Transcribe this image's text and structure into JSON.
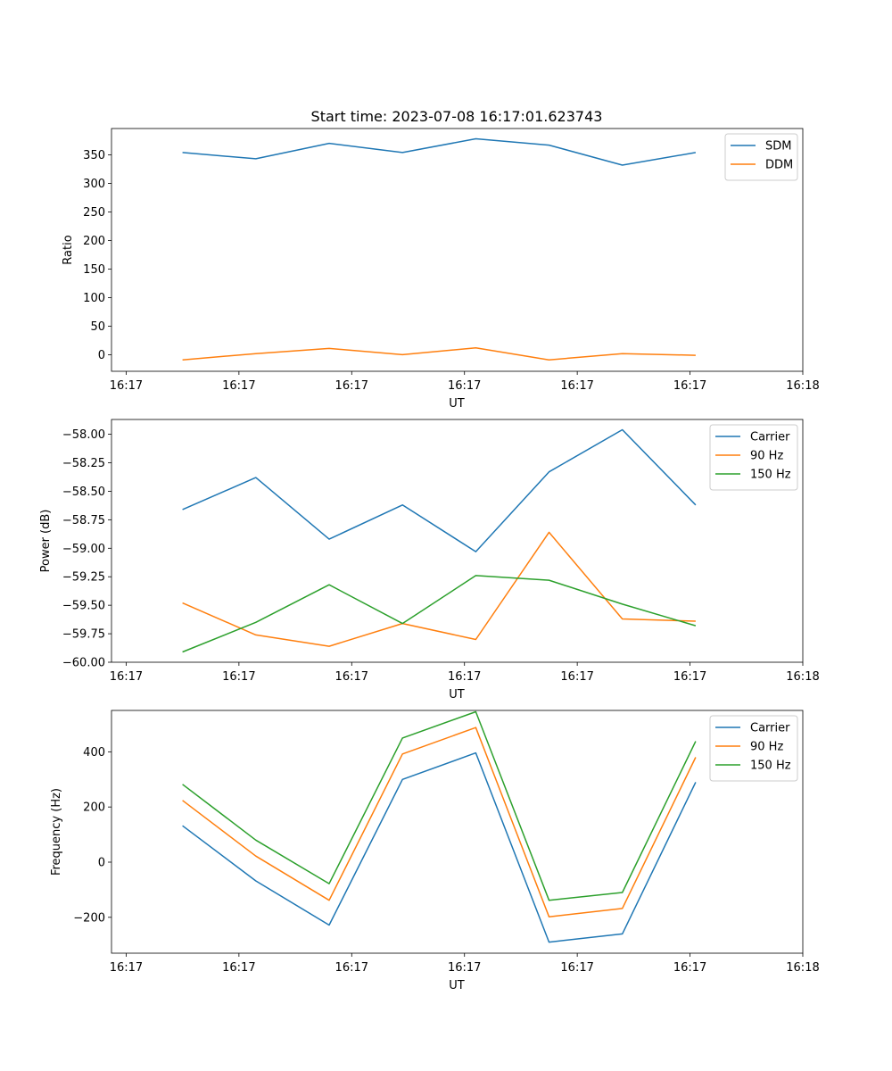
{
  "figure_title": "Start time: 2023-07-08 16:17:01.623743",
  "chart_data": [
    {
      "type": "line",
      "title": "Start time: 2023-07-08 16:17:01.623743",
      "xlabel": "UT",
      "ylabel": "Ratio",
      "x_tick_labels": [
        "16:17",
        "16:17",
        "16:17",
        "16:17",
        "16:17",
        "16:17",
        "16:18"
      ],
      "x_tick_positions": [
        0,
        1,
        2,
        3,
        4,
        5,
        6
      ],
      "xlim": [
        -0.13,
        6.0
      ],
      "x": [
        0.5,
        1.15,
        1.8,
        2.45,
        3.1,
        3.75,
        4.4,
        5.05
      ],
      "ylim": [
        -29,
        396
      ],
      "yticks": [
        0,
        50,
        100,
        150,
        200,
        250,
        300,
        350
      ],
      "legend_position": "top-right",
      "series": [
        {
          "name": "SDM",
          "color": "#1f77b4",
          "values": [
            354,
            343,
            370,
            354,
            378,
            367,
            332,
            354
          ]
        },
        {
          "name": "DDM",
          "color": "#ff7f0e",
          "values": [
            -9,
            2,
            11,
            0,
            12,
            -9,
            2,
            -1
          ]
        }
      ]
    },
    {
      "type": "line",
      "xlabel": "UT",
      "ylabel": "Power (dB)",
      "x_tick_labels": [
        "16:17",
        "16:17",
        "16:17",
        "16:17",
        "16:17",
        "16:17",
        "16:18"
      ],
      "x_tick_positions": [
        0,
        1,
        2,
        3,
        4,
        5,
        6
      ],
      "xlim": [
        -0.13,
        6.0
      ],
      "x": [
        0.5,
        1.15,
        1.8,
        2.45,
        3.1,
        3.75,
        4.4,
        5.05
      ],
      "ylim": [
        -60.0,
        -57.87
      ],
      "yticks": [
        -60.0,
        -59.75,
        -59.5,
        -59.25,
        -59.0,
        -58.75,
        -58.5,
        -58.25,
        -58.0
      ],
      "ytick_labels": [
        "−60.00",
        "−59.75",
        "−59.50",
        "−59.25",
        "−59.00",
        "−58.75",
        "−58.50",
        "−58.25",
        "−58.00"
      ],
      "legend_position": "top-right",
      "series": [
        {
          "name": "Carrier",
          "color": "#1f77b4",
          "values": [
            -58.66,
            -58.38,
            -58.92,
            -58.62,
            -59.03,
            -58.33,
            -57.96,
            -58.62
          ]
        },
        {
          "name": "90 Hz",
          "color": "#ff7f0e",
          "values": [
            -59.48,
            -59.76,
            -59.86,
            -59.66,
            -59.8,
            -58.86,
            -59.62,
            -59.64
          ]
        },
        {
          "name": "150 Hz",
          "color": "#2ca02c",
          "values": [
            -59.91,
            -59.65,
            -59.32,
            -59.66,
            -59.24,
            -59.28,
            -59.49,
            -59.68
          ]
        }
      ]
    },
    {
      "type": "line",
      "xlabel": "UT",
      "ylabel": "Frequency (Hz)",
      "x_tick_labels": [
        "16:17",
        "16:17",
        "16:17",
        "16:17",
        "16:17",
        "16:17",
        "16:18"
      ],
      "x_tick_positions": [
        0,
        1,
        2,
        3,
        4,
        5,
        6
      ],
      "xlim": [
        -0.13,
        6.0
      ],
      "x": [
        0.5,
        1.15,
        1.8,
        2.45,
        3.1,
        3.75,
        4.4,
        5.05
      ],
      "ylim": [
        -330,
        550
      ],
      "yticks": [
        -200,
        0,
        200,
        400
      ],
      "ytick_labels": [
        "−200",
        "0",
        "200",
        "400"
      ],
      "legend_position": "top-right",
      "series": [
        {
          "name": "Carrier",
          "color": "#1f77b4",
          "values": [
            132,
            -68,
            -228,
            300,
            396,
            -290,
            -260,
            290
          ]
        },
        {
          "name": "90 Hz",
          "color": "#ff7f0e",
          "values": [
            224,
            22,
            -138,
            392,
            488,
            -198,
            -168,
            380
          ]
        },
        {
          "name": "150 Hz",
          "color": "#2ca02c",
          "values": [
            282,
            80,
            -78,
            450,
            545,
            -138,
            -110,
            438
          ]
        }
      ]
    }
  ]
}
